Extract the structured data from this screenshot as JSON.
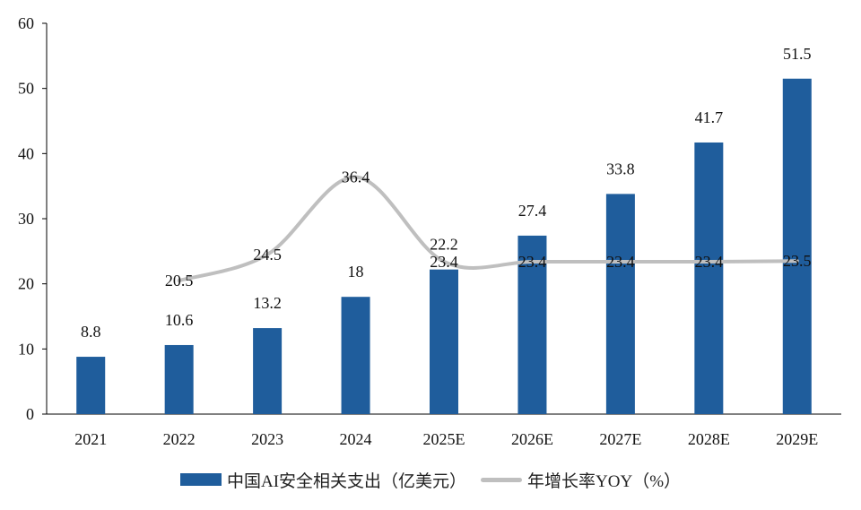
{
  "chart_data": {
    "type": "bar",
    "categories": [
      "2021",
      "2022",
      "2023",
      "2024",
      "2025E",
      "2026E",
      "2027E",
      "2028E",
      "2029E"
    ],
    "series": [
      {
        "name": "中国AI安全相关支出（亿美元）",
        "kind": "bar",
        "color": "#1f5d9c",
        "values": [
          8.8,
          10.6,
          13.2,
          18,
          22.2,
          27.4,
          33.8,
          41.7,
          51.5
        ],
        "labels": [
          "8.8",
          "10.6",
          "13.2",
          "18",
          "22.2",
          "27.4",
          "33.8",
          "41.7",
          "51.5"
        ]
      },
      {
        "name": "年增长率YOY（%）",
        "kind": "line",
        "smooth": true,
        "color": "#bfbfbf",
        "values": [
          null,
          20.5,
          24.5,
          36.4,
          23.4,
          23.4,
          23.4,
          23.4,
          23.5
        ],
        "labels": [
          null,
          "20.5",
          "24.5",
          "36.4",
          "23.4",
          "23.4",
          "23.4",
          "23.4",
          "23.5"
        ]
      }
    ],
    "yticks": [
      "0",
      "10",
      "20",
      "30",
      "40",
      "50",
      "60"
    ],
    "ylim": [
      0,
      60
    ],
    "grid": false,
    "legend_position": "bottom"
  }
}
